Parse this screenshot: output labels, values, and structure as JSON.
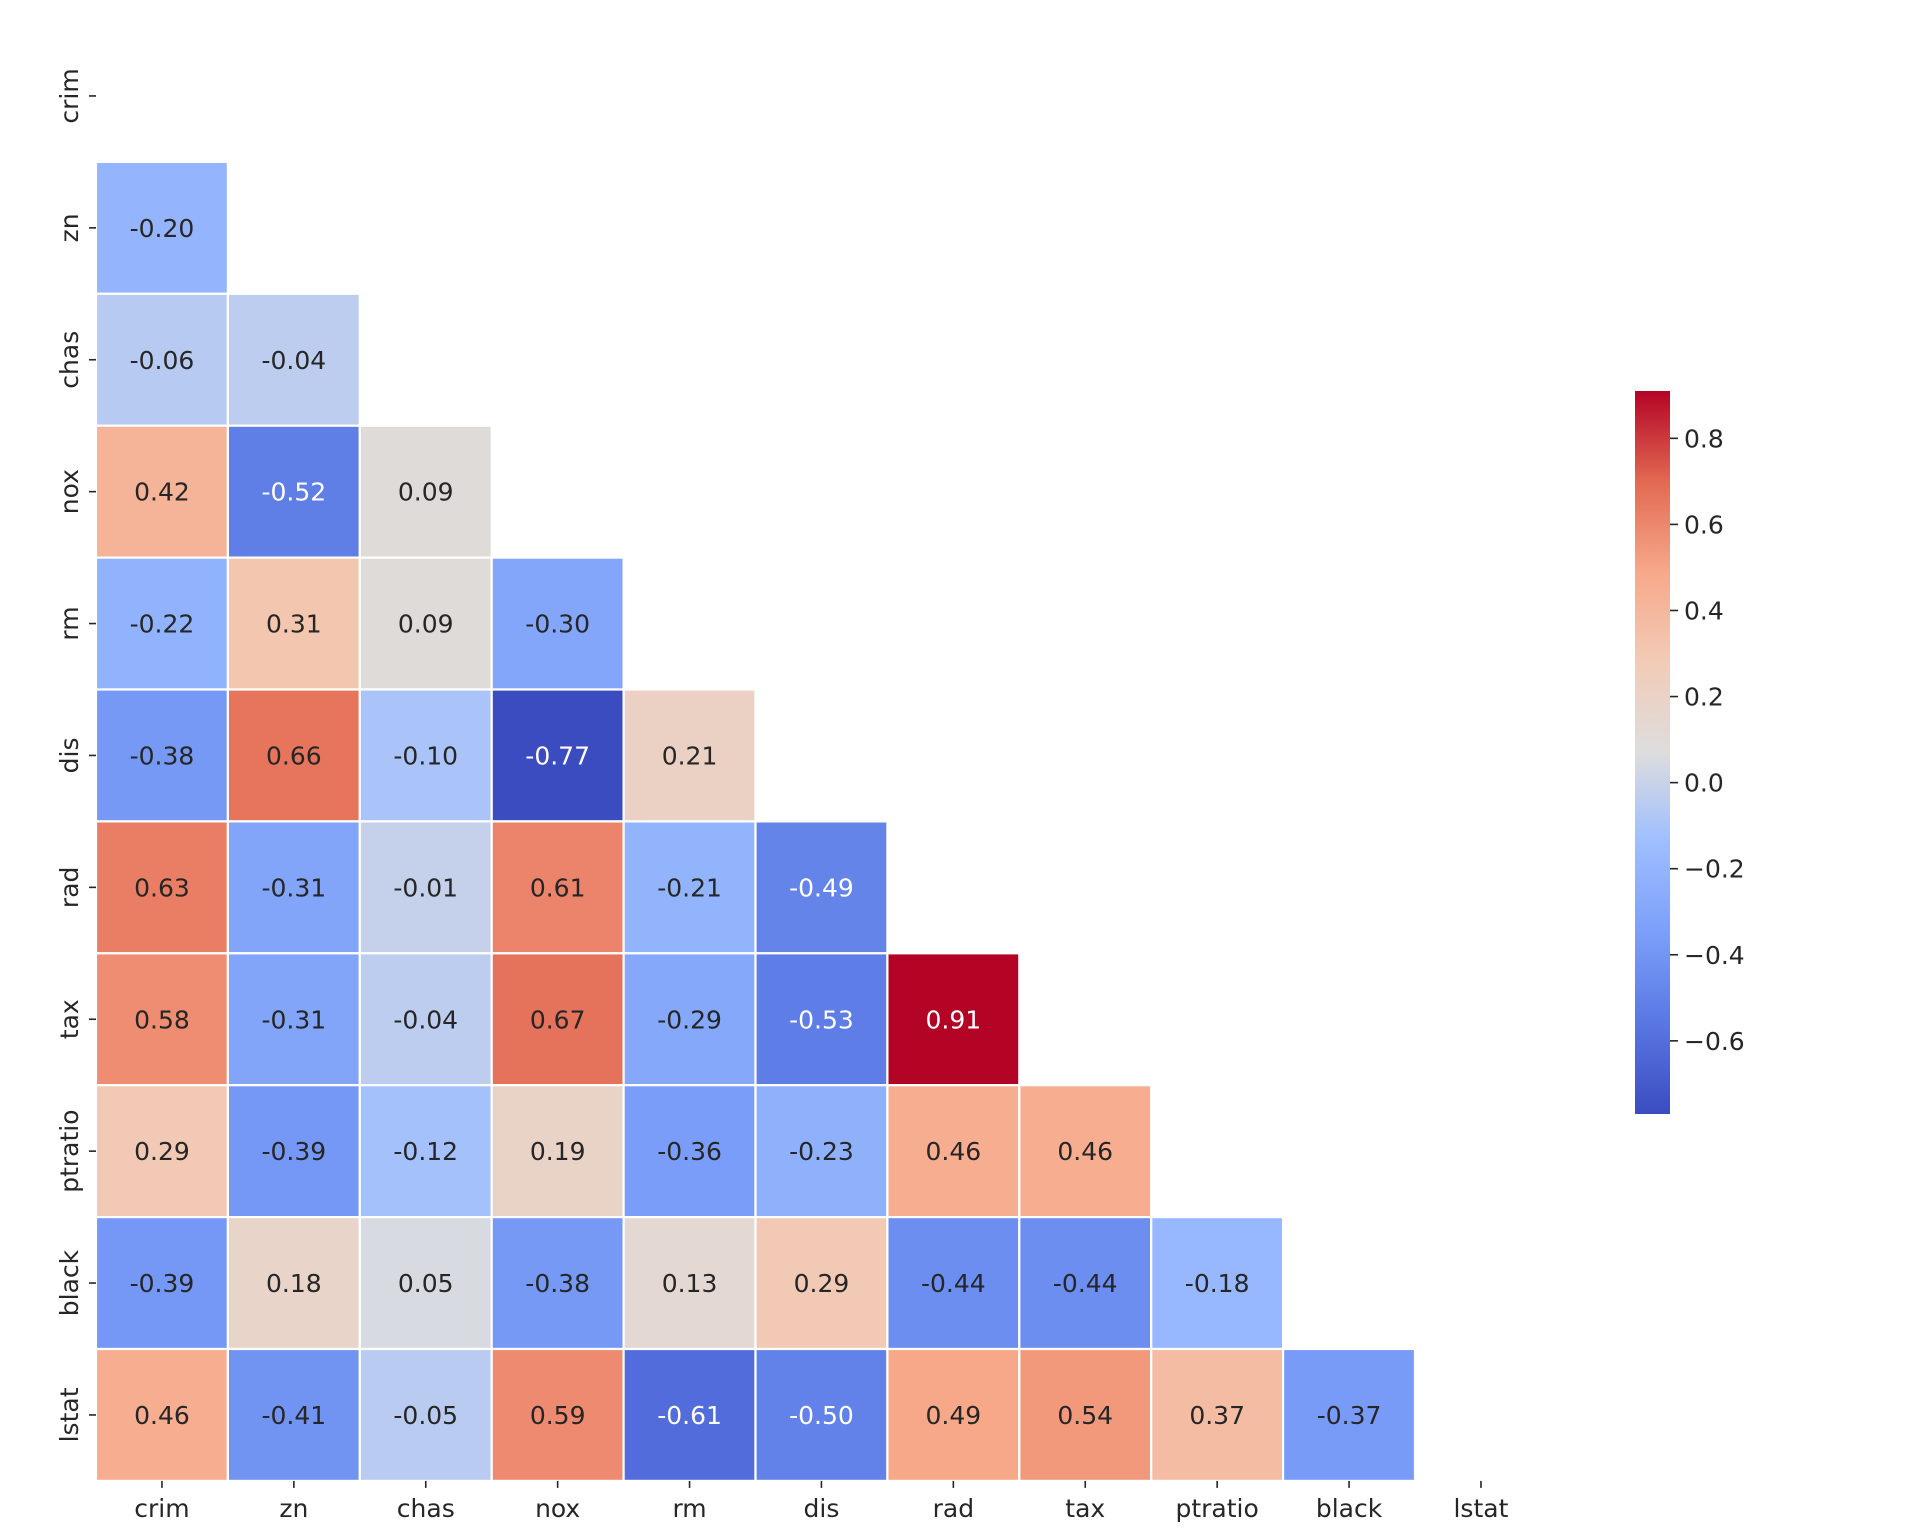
{
  "chart_data": {
    "type": "heatmap",
    "title": "",
    "xlabel": "",
    "ylabel": "",
    "mask": "lower-triangle (upper triangle and diagonal hidden)",
    "colormap": "coolwarm",
    "value_format": "2 decimals",
    "labels": [
      "crim",
      "zn",
      "chas",
      "nox",
      "rm",
      "dis",
      "rad",
      "tax",
      "ptratio",
      "black",
      "lstat"
    ],
    "cells": [
      {
        "row": "zn",
        "col": "crim",
        "value": -0.2
      },
      {
        "row": "chas",
        "col": "crim",
        "value": -0.06
      },
      {
        "row": "chas",
        "col": "zn",
        "value": -0.04
      },
      {
        "row": "nox",
        "col": "crim",
        "value": 0.42
      },
      {
        "row": "nox",
        "col": "zn",
        "value": -0.52
      },
      {
        "row": "nox",
        "col": "chas",
        "value": 0.09
      },
      {
        "row": "rm",
        "col": "crim",
        "value": -0.22
      },
      {
        "row": "rm",
        "col": "zn",
        "value": 0.31
      },
      {
        "row": "rm",
        "col": "chas",
        "value": 0.09
      },
      {
        "row": "rm",
        "col": "nox",
        "value": -0.3
      },
      {
        "row": "dis",
        "col": "crim",
        "value": -0.38
      },
      {
        "row": "dis",
        "col": "zn",
        "value": 0.66
      },
      {
        "row": "dis",
        "col": "chas",
        "value": -0.1
      },
      {
        "row": "dis",
        "col": "nox",
        "value": -0.77
      },
      {
        "row": "dis",
        "col": "rm",
        "value": 0.21
      },
      {
        "row": "rad",
        "col": "crim",
        "value": 0.63
      },
      {
        "row": "rad",
        "col": "zn",
        "value": -0.31
      },
      {
        "row": "rad",
        "col": "chas",
        "value": -0.01
      },
      {
        "row": "rad",
        "col": "nox",
        "value": 0.61
      },
      {
        "row": "rad",
        "col": "rm",
        "value": -0.21
      },
      {
        "row": "rad",
        "col": "dis",
        "value": -0.49
      },
      {
        "row": "tax",
        "col": "crim",
        "value": 0.58
      },
      {
        "row": "tax",
        "col": "zn",
        "value": -0.31
      },
      {
        "row": "tax",
        "col": "chas",
        "value": -0.04
      },
      {
        "row": "tax",
        "col": "nox",
        "value": 0.67
      },
      {
        "row": "tax",
        "col": "rm",
        "value": -0.29
      },
      {
        "row": "tax",
        "col": "dis",
        "value": -0.53
      },
      {
        "row": "tax",
        "col": "rad",
        "value": 0.91
      },
      {
        "row": "ptratio",
        "col": "crim",
        "value": 0.29
      },
      {
        "row": "ptratio",
        "col": "zn",
        "value": -0.39
      },
      {
        "row": "ptratio",
        "col": "chas",
        "value": -0.12
      },
      {
        "row": "ptratio",
        "col": "nox",
        "value": 0.19
      },
      {
        "row": "ptratio",
        "col": "rm",
        "value": -0.36
      },
      {
        "row": "ptratio",
        "col": "dis",
        "value": -0.23
      },
      {
        "row": "ptratio",
        "col": "rad",
        "value": 0.46
      },
      {
        "row": "ptratio",
        "col": "tax",
        "value": 0.46
      },
      {
        "row": "black",
        "col": "crim",
        "value": -0.39
      },
      {
        "row": "black",
        "col": "zn",
        "value": 0.18
      },
      {
        "row": "black",
        "col": "chas",
        "value": 0.05
      },
      {
        "row": "black",
        "col": "nox",
        "value": -0.38
      },
      {
        "row": "black",
        "col": "rm",
        "value": 0.13
      },
      {
        "row": "black",
        "col": "dis",
        "value": 0.29
      },
      {
        "row": "black",
        "col": "rad",
        "value": -0.44
      },
      {
        "row": "black",
        "col": "tax",
        "value": -0.44
      },
      {
        "row": "black",
        "col": "ptratio",
        "value": -0.18
      },
      {
        "row": "lstat",
        "col": "crim",
        "value": 0.46
      },
      {
        "row": "lstat",
        "col": "zn",
        "value": -0.41
      },
      {
        "row": "lstat",
        "col": "chas",
        "value": -0.05
      },
      {
        "row": "lstat",
        "col": "nox",
        "value": 0.59
      },
      {
        "row": "lstat",
        "col": "rm",
        "value": -0.61
      },
      {
        "row": "lstat",
        "col": "dis",
        "value": -0.5
      },
      {
        "row": "lstat",
        "col": "rad",
        "value": 0.49
      },
      {
        "row": "lstat",
        "col": "tax",
        "value": 0.54
      },
      {
        "row": "lstat",
        "col": "ptratio",
        "value": 0.37
      },
      {
        "row": "lstat",
        "col": "black",
        "value": -0.37
      }
    ],
    "colorbar": {
      "range": [
        -0.77,
        0.91
      ],
      "ticks": [
        {
          "value": 0.8,
          "label": "0.8"
        },
        {
          "value": 0.6,
          "label": "0.6"
        },
        {
          "value": 0.4,
          "label": "0.4"
        },
        {
          "value": 0.2,
          "label": "0.2"
        },
        {
          "value": 0.0,
          "label": "0.0"
        },
        {
          "value": -0.2,
          "label": "−0.2"
        },
        {
          "value": -0.4,
          "label": "−0.4"
        },
        {
          "value": -0.6,
          "label": "−0.6"
        }
      ]
    },
    "colors": {
      "low": "#3b4cc0",
      "mid": "#dddddd",
      "high": "#b40426",
      "grid_line": "#ffffff",
      "text_dark": "#262626",
      "text_light": "#ffffff"
    }
  }
}
